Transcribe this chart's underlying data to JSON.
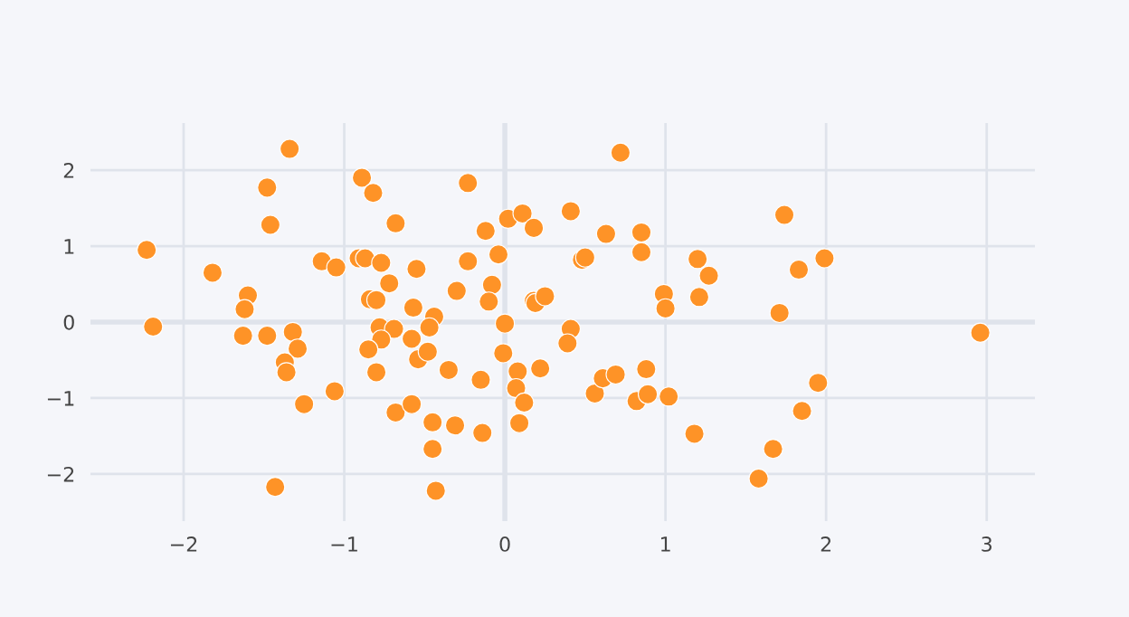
{
  "chart_data": {
    "type": "scatter",
    "marker": "circle",
    "grid": true,
    "legend": false,
    "xlim": [
      -2.58,
      3.3
    ],
    "ylim": [
      -2.62,
      2.62
    ],
    "xticks": [
      {
        "value": -2,
        "label": "−2"
      },
      {
        "value": -1,
        "label": "−1"
      },
      0,
      1,
      2,
      3
    ],
    "yticks": [
      {
        "value": -2,
        "label": "−2"
      },
      {
        "value": -1,
        "label": "−1"
      },
      0,
      1,
      2
    ],
    "series": [
      {
        "color": "#fe9327",
        "x": [
          -2.23,
          -2.19,
          -1.82,
          -1.6,
          -1.62,
          -1.63,
          -1.48,
          -1.48,
          -1.46,
          -1.34,
          -1.43,
          -1.32,
          -1.29,
          -1.37,
          -1.36,
          -1.25,
          -1.14,
          -1.05,
          -1.06,
          -0.89,
          -0.82,
          -0.68,
          -0.91,
          -0.87,
          -0.77,
          -0.72,
          -0.84,
          -0.8,
          -0.78,
          -0.69,
          -0.77,
          -0.85,
          -0.8,
          -0.68,
          -0.23,
          -0.55,
          -0.57,
          -0.44,
          -0.47,
          -0.58,
          -0.54,
          -0.48,
          -0.58,
          -0.45,
          -0.45,
          -0.43,
          -0.3,
          -0.23,
          -0.35,
          -0.31,
          -0.15,
          -0.14,
          -0.12,
          -0.08,
          -0.1,
          -0.04,
          0.0,
          -0.01,
          0.02,
          0.11,
          0.18,
          0.08,
          0.07,
          0.12,
          0.09,
          0.18,
          0.19,
          0.25,
          0.22,
          0.41,
          0.48,
          0.5,
          0.41,
          0.39,
          0.63,
          0.72,
          0.85,
          0.85,
          0.99,
          1.0,
          0.56,
          0.61,
          0.69,
          0.88,
          0.82,
          0.89,
          1.02,
          1.2,
          1.27,
          1.21,
          1.74,
          1.83,
          1.99,
          1.71,
          2.96,
          1.95,
          1.85,
          1.18,
          1.67,
          1.58
        ],
        "values": [
          0.95,
          -0.06,
          0.65,
          0.35,
          0.17,
          -0.18,
          -0.18,
          1.77,
          1.28,
          2.28,
          -2.17,
          -0.13,
          -0.35,
          -0.53,
          -0.66,
          -1.08,
          0.8,
          0.72,
          -0.91,
          1.9,
          1.7,
          1.3,
          0.84,
          0.84,
          0.78,
          0.51,
          0.3,
          0.29,
          -0.07,
          -0.09,
          -0.23,
          -0.36,
          -0.66,
          -1.19,
          1.83,
          0.7,
          0.19,
          0.07,
          -0.07,
          -0.22,
          -0.49,
          -0.39,
          -1.08,
          -1.32,
          -1.67,
          -2.22,
          0.41,
          0.8,
          -0.63,
          -1.36,
          -0.76,
          -1.46,
          1.2,
          0.49,
          0.27,
          0.89,
          -0.02,
          -0.41,
          1.36,
          1.43,
          1.24,
          -0.65,
          -0.87,
          -1.06,
          -1.33,
          0.28,
          0.25,
          0.34,
          -0.61,
          1.46,
          0.82,
          0.85,
          -0.09,
          -0.28,
          1.16,
          2.23,
          1.18,
          0.92,
          0.37,
          0.18,
          -0.94,
          -0.74,
          -0.69,
          -0.62,
          -1.04,
          -0.95,
          -0.98,
          0.83,
          0.61,
          0.33,
          1.41,
          0.69,
          0.84,
          0.12,
          -0.14,
          -0.8,
          -1.17,
          -1.47,
          -1.67,
          -2.06
        ]
      }
    ]
  }
}
